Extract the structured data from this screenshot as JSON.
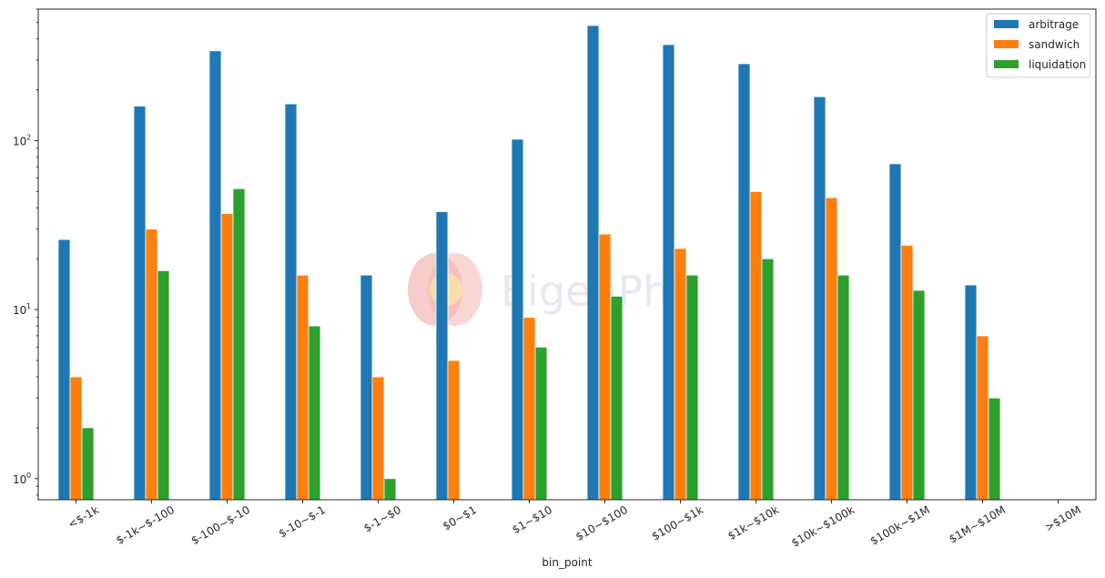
{
  "chart_data": {
    "type": "bar",
    "xlabel": "bin_point",
    "ylabel": "",
    "yscale": "log",
    "ylim": [
      0.75,
      600
    ],
    "ytick_values": [
      1,
      10,
      100
    ],
    "ytick_labels": [
      "10",
      "10",
      "10"
    ],
    "ytick_exponents": [
      "0",
      "1",
      "2"
    ],
    "legend_position": "top-right",
    "grid": false,
    "categories": [
      "<$-1k",
      "$-1k~$-100",
      "$-100~$-10",
      "$-10~$-1",
      "$-1~$0",
      "$0~$1",
      "$1~$10",
      "$10~$100",
      "$100~$1k",
      "$1k~$10k",
      "$10k~$100k",
      "$100k~$1M",
      "$1M~$10M",
      ">$10M"
    ],
    "series": [
      {
        "name": "arbitrage",
        "color": "#1f77b4",
        "values": [
          26,
          160,
          340,
          165,
          16,
          38,
          102,
          480,
          370,
          285,
          182,
          73,
          14,
          null
        ]
      },
      {
        "name": "sandwich",
        "color": "#ff7f0e",
        "values": [
          4,
          30,
          37,
          16,
          4,
          5,
          9,
          28,
          23,
          50,
          46,
          24,
          7,
          null
        ]
      },
      {
        "name": "liquidation",
        "color": "#2ca02c",
        "values": [
          2,
          17,
          52,
          8,
          1,
          null,
          6,
          12,
          16,
          20,
          16,
          13,
          3,
          null
        ]
      }
    ]
  },
  "watermark": {
    "text": "EigenPhi"
  }
}
